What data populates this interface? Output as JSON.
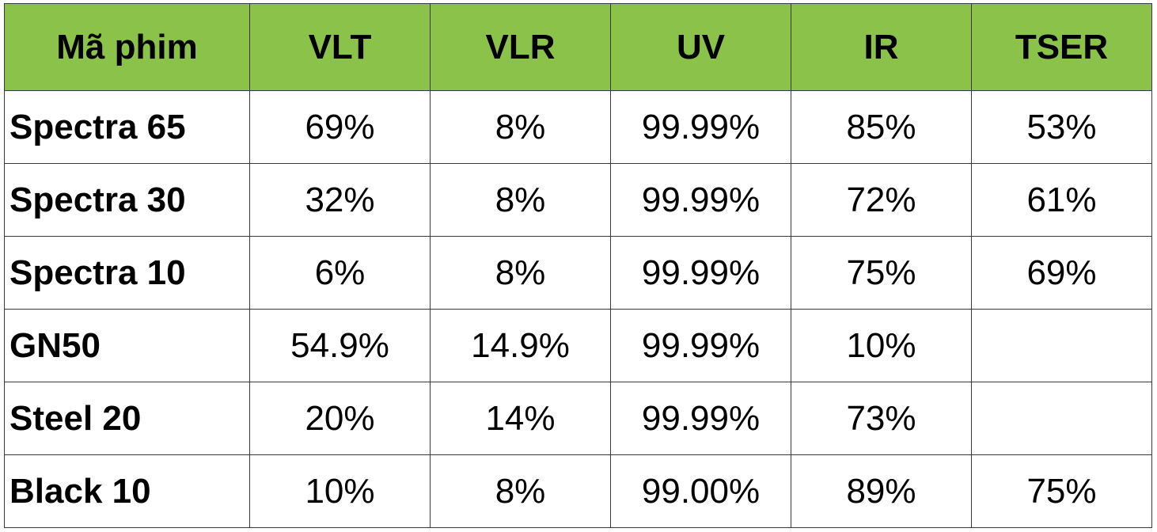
{
  "table": {
    "headers": [
      "Mã phim",
      "VLT",
      "VLR",
      "UV",
      "IR",
      "TSER"
    ],
    "rows": [
      [
        "Spectra 65",
        "69%",
        "8%",
        "99.99%",
        "85%",
        "53%"
      ],
      [
        "Spectra 30",
        "32%",
        "8%",
        "99.99%",
        "72%",
        "61%"
      ],
      [
        "Spectra 10",
        "6%",
        "8%",
        "99.99%",
        "75%",
        "69%"
      ],
      [
        "GN50",
        "54.9%",
        "14.9%",
        "99.99%",
        "10%",
        ""
      ],
      [
        "Steel 20",
        "20%",
        "14%",
        "99.99%",
        "73%",
        ""
      ],
      [
        "Black 10",
        "10%",
        "8%",
        "99.00%",
        "89%",
        "75%"
      ]
    ]
  },
  "colors": {
    "header_background": "#8bc34a",
    "border": "#3a3a3a",
    "text": "#000000"
  }
}
